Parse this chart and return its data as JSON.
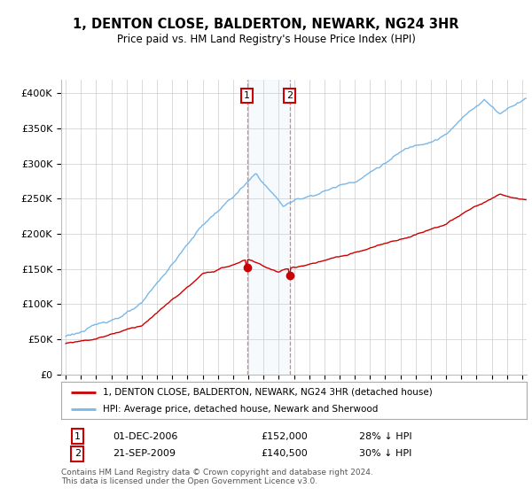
{
  "title": "1, DENTON CLOSE, BALDERTON, NEWARK, NG24 3HR",
  "subtitle": "Price paid vs. HM Land Registry's House Price Index (HPI)",
  "ylim": [
    0,
    420000
  ],
  "yticks": [
    0,
    50000,
    100000,
    150000,
    200000,
    250000,
    300000,
    350000,
    400000
  ],
  "ytick_labels": [
    "£0",
    "£50K",
    "£100K",
    "£150K",
    "£200K",
    "£250K",
    "£300K",
    "£350K",
    "£400K"
  ],
  "hpi_color": "#7ab8e8",
  "price_color": "#cc0000",
  "vline_color": "#e08080",
  "transaction1_date": 2006.92,
  "transaction1_price": 152000,
  "transaction2_date": 2009.72,
  "transaction2_price": 140500,
  "legend_label_price": "1, DENTON CLOSE, BALDERTON, NEWARK, NG24 3HR (detached house)",
  "legend_label_hpi": "HPI: Average price, detached house, Newark and Sherwood",
  "footer": "Contains HM Land Registry data © Crown copyright and database right 2024.\nThis data is licensed under the Open Government Licence v3.0.",
  "background_color": "#ffffff",
  "grid_color": "#cccccc",
  "xlim_left": 1995.0,
  "xlim_right": 2025.3
}
